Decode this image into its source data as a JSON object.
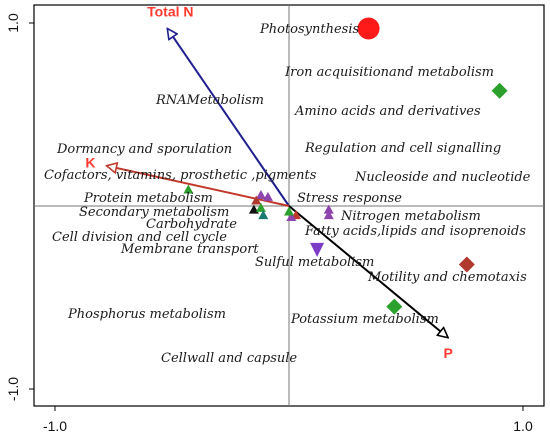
{
  "chart_data": {
    "type": "scatter",
    "title": "",
    "xlabel": "",
    "ylabel": "",
    "xlim": [
      -1.0,
      1.0
    ],
    "ylim": [
      -1.0,
      1.0
    ],
    "grid": false,
    "x_ticks": [
      {
        "value": -1.0,
        "label": "-1.0"
      },
      {
        "value": 1.0,
        "label": "1.0"
      }
    ],
    "y_ticks": [
      {
        "value": 1.0,
        "label": "1.0"
      },
      {
        "value": -1.0,
        "label": "-1.0"
      }
    ],
    "vectors": [
      {
        "label": "Total N",
        "x": -0.52,
        "y": 0.97,
        "color": "#1f1f8f",
        "label_color": "#ff3b30"
      },
      {
        "label": "K",
        "x": -0.78,
        "y": 0.22,
        "color": "#c0392b",
        "label_color": "#ff3b30"
      },
      {
        "label": "P",
        "x": 0.68,
        "y": -0.72,
        "color": "#000000",
        "label_color": "#ff3b30"
      }
    ],
    "points": [
      {
        "x": 0.34,
        "y": 0.97,
        "shape": "circle",
        "color": "#ff1a1a"
      },
      {
        "x": 0.9,
        "y": 0.63,
        "shape": "diamond",
        "color": "#2ca02c"
      },
      {
        "x": 0.76,
        "y": -0.32,
        "shape": "diamond",
        "color": "#b03a2e"
      },
      {
        "x": 0.45,
        "y": -0.55,
        "shape": "diamond",
        "color": "#2ca02c"
      },
      {
        "x": 0.12,
        "y": -0.24,
        "shape": "triangle-down",
        "color": "#7d3cc8"
      },
      {
        "x": 0.17,
        "y": -0.02,
        "shape": "triangle",
        "color": "#8e44ad"
      },
      {
        "x": 0.17,
        "y": -0.05,
        "shape": "triangle",
        "color": "#8e44ad"
      },
      {
        "x": 0.03,
        "y": -0.05,
        "shape": "triangle",
        "color": "#c0392b"
      },
      {
        "x": 0.01,
        "y": -0.06,
        "shape": "triangle",
        "color": "#8e44ad"
      },
      {
        "x": 0.0,
        "y": -0.03,
        "shape": "triangle",
        "color": "#2ca02c"
      },
      {
        "x": -0.09,
        "y": 0.05,
        "shape": "triangle",
        "color": "#8e44ad"
      },
      {
        "x": -0.12,
        "y": 0.06,
        "shape": "triangle",
        "color": "#8e44ad"
      },
      {
        "x": -0.15,
        "y": -0.02,
        "shape": "triangle",
        "color": "#111111"
      },
      {
        "x": -0.14,
        "y": 0.03,
        "shape": "triangle",
        "color": "#b03a2e"
      },
      {
        "x": -0.12,
        "y": -0.01,
        "shape": "triangle",
        "color": "#2ca02c"
      },
      {
        "x": -0.11,
        "y": -0.05,
        "shape": "triangle",
        "color": "#1a7a6e"
      },
      {
        "x": -0.43,
        "y": 0.09,
        "shape": "triangle",
        "color": "#2ca02c"
      }
    ],
    "labels": [
      "Photosynthesis",
      "Iron acquisitionand metabolism",
      "RNAMetabolism",
      "Amino acids and derivatives",
      "Dormancy and sporulation",
      "Regulation and cell signalling",
      "Cofactors, vitamins, prosthetic ,pigments",
      "Nucleoside and nucleotide",
      "Protein metabolism",
      "Stress response",
      "Secondary metabolism",
      "Nitrogen metabolism",
      "Carbohydrate",
      "Fatty acids,lipids and isoprenoids",
      "Cell division and cell cycle",
      "Membrane transport",
      "Sulful metabolism",
      "Motility and chemotaxis",
      "Phosphorus metabolism",
      "Potassium metabolism",
      "Cellwall and capsule"
    ]
  }
}
